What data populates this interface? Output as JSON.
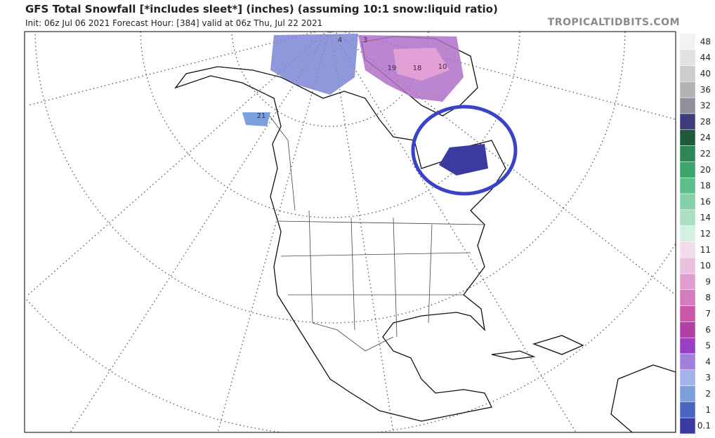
{
  "header": {
    "title": "GFS Total Snowfall [*includes sleet*] (inches) (assuming 10:1 snow:liquid ratio)",
    "subtitle": "Init: 06z Jul 06 2021   Forecast Hour: [384]  valid at 06z Thu, Jul 22 2021",
    "credit": "TROPICALTIDBITS.COM"
  },
  "map_labels": [
    "4",
    "3",
    "19",
    "18",
    "10",
    "21"
  ],
  "legend": {
    "items": [
      {
        "label": "48",
        "color": "#f2f2f2"
      },
      {
        "label": "44",
        "color": "#e2e2e2"
      },
      {
        "label": "40",
        "color": "#cdcdcd"
      },
      {
        "label": "36",
        "color": "#b3b3b3"
      },
      {
        "label": "32",
        "color": "#8f8f9e"
      },
      {
        "label": "28",
        "color": "#3d3d7e"
      },
      {
        "label": "24",
        "color": "#1f5a3a"
      },
      {
        "label": "22",
        "color": "#2c8656"
      },
      {
        "label": "20",
        "color": "#3ba56c"
      },
      {
        "label": "18",
        "color": "#5cbf8c"
      },
      {
        "label": "16",
        "color": "#84d1a8"
      },
      {
        "label": "14",
        "color": "#abe0c5"
      },
      {
        "label": "12",
        "color": "#d3f0e3"
      },
      {
        "label": "11",
        "color": "#f2dcec"
      },
      {
        "label": "10",
        "color": "#ebc0de"
      },
      {
        "label": "9",
        "color": "#e19dd0"
      },
      {
        "label": "8",
        "color": "#d77bc0"
      },
      {
        "label": "7",
        "color": "#cb57ab"
      },
      {
        "label": "6",
        "color": "#b23fa3"
      },
      {
        "label": "5",
        "color": "#9a3fc4"
      },
      {
        "label": "4",
        "color": "#a17fdb"
      },
      {
        "label": "3",
        "color": "#a2b3ea"
      },
      {
        "label": "2",
        "color": "#7ba0dc"
      },
      {
        "label": "1",
        "color": "#4a66c0"
      },
      {
        "label": "0.1",
        "color": "#3a3aa0"
      }
    ]
  }
}
